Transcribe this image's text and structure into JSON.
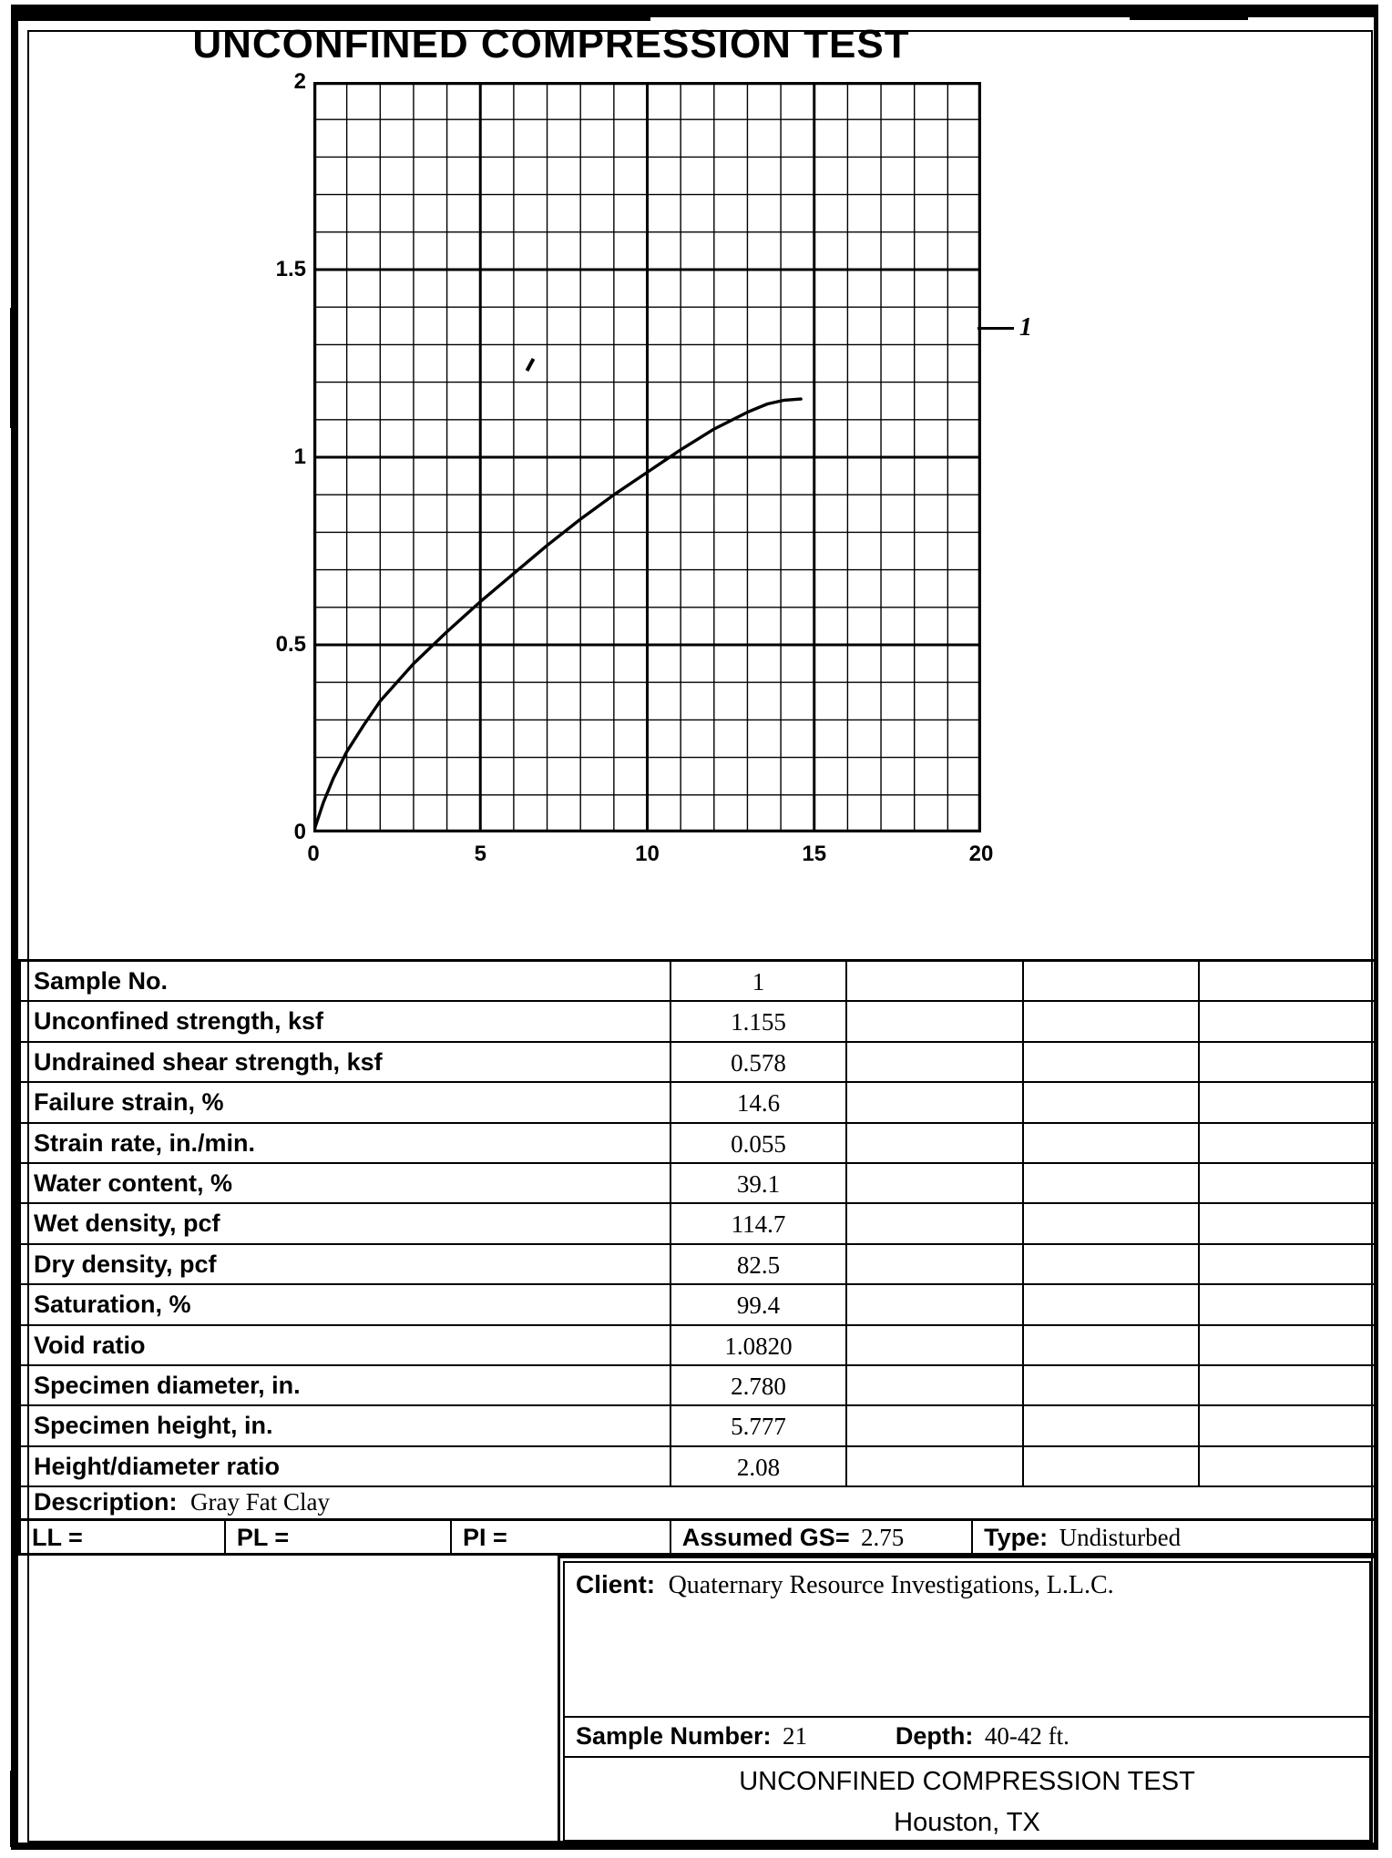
{
  "page": {
    "title": "UNCONFINED COMPRESSION TEST"
  },
  "chart_data": {
    "type": "line",
    "title": "UNCONFINED COMPRESSION TEST",
    "xlabel": "",
    "ylabel": "",
    "xlim": [
      0,
      20
    ],
    "ylim": [
      0,
      2
    ],
    "x_ticks": [
      0,
      5,
      10,
      15,
      20
    ],
    "y_ticks": [
      0,
      0.5,
      1,
      1.5,
      2
    ],
    "x_tick_labels": [
      "0",
      "5",
      "10",
      "15",
      "20"
    ],
    "y_tick_labels": [
      "0",
      "0.5",
      "1",
      "1.5",
      "2"
    ],
    "x_minor_step": 1,
    "y_minor_step": 0.1,
    "grid": true,
    "legend_position": "right-outside",
    "series": [
      {
        "name": "1",
        "points": [
          [
            0,
            0
          ],
          [
            0.3,
            0.08
          ],
          [
            0.6,
            0.145
          ],
          [
            1,
            0.215
          ],
          [
            1.5,
            0.285
          ],
          [
            2,
            0.35
          ],
          [
            2.5,
            0.4
          ],
          [
            3,
            0.45
          ],
          [
            4,
            0.535
          ],
          [
            5,
            0.615
          ],
          [
            6,
            0.69
          ],
          [
            7,
            0.765
          ],
          [
            8,
            0.835
          ],
          [
            9,
            0.9
          ],
          [
            10,
            0.96
          ],
          [
            11,
            1.02
          ],
          [
            12,
            1.075
          ],
          [
            13,
            1.12
          ],
          [
            13.6,
            1.142
          ],
          [
            14.1,
            1.152
          ],
          [
            14.6,
            1.155
          ]
        ]
      }
    ]
  },
  "results_table": {
    "rows": [
      {
        "label": "Sample No.",
        "values": [
          "1",
          "",
          "",
          ""
        ]
      },
      {
        "label": "Unconfined strength, ksf",
        "values": [
          "1.155",
          "",
          "",
          ""
        ]
      },
      {
        "label": "Undrained shear strength, ksf",
        "values": [
          "0.578",
          "",
          "",
          ""
        ]
      },
      {
        "label": "Failure strain, %",
        "values": [
          "14.6",
          "",
          "",
          ""
        ]
      },
      {
        "label": "Strain rate, in./min.",
        "values": [
          "0.055",
          "",
          "",
          ""
        ]
      },
      {
        "label": "Water content, %",
        "values": [
          "39.1",
          "",
          "",
          ""
        ]
      },
      {
        "label": "Wet density, pcf",
        "values": [
          "114.7",
          "",
          "",
          ""
        ]
      },
      {
        "label": "Dry density, pcf",
        "values": [
          "82.5",
          "",
          "",
          ""
        ]
      },
      {
        "label": "Saturation, %",
        "values": [
          "99.4",
          "",
          "",
          ""
        ]
      },
      {
        "label": "Void ratio",
        "values": [
          "1.0820",
          "",
          "",
          ""
        ]
      },
      {
        "label": "Specimen diameter, in.",
        "values": [
          "2.780",
          "",
          "",
          ""
        ]
      },
      {
        "label": "Specimen height, in.",
        "values": [
          "5.777",
          "",
          "",
          ""
        ]
      },
      {
        "label": "Height/diameter ratio",
        "values": [
          "2.08",
          "",
          "",
          ""
        ]
      }
    ]
  },
  "description": {
    "label": "Description:",
    "value": "Gray Fat Clay"
  },
  "index_row": {
    "ll_label": "LL =",
    "pl_label": "PL =",
    "pi_label": "PI =",
    "gs_label": "Assumed GS=",
    "gs_value": "2.75",
    "type_label": "Type:",
    "type_value": "Undisturbed"
  },
  "title_block": {
    "client_label": "Client:",
    "client_value": "Quaternary Resource Investigations, L.L.C.",
    "sample_label": "Sample Number:",
    "sample_value": "21",
    "depth_label": "Depth:",
    "depth_value": "40-42 ft.",
    "test_title": "UNCONFINED COMPRESSION TEST",
    "location": "Houston, TX"
  }
}
